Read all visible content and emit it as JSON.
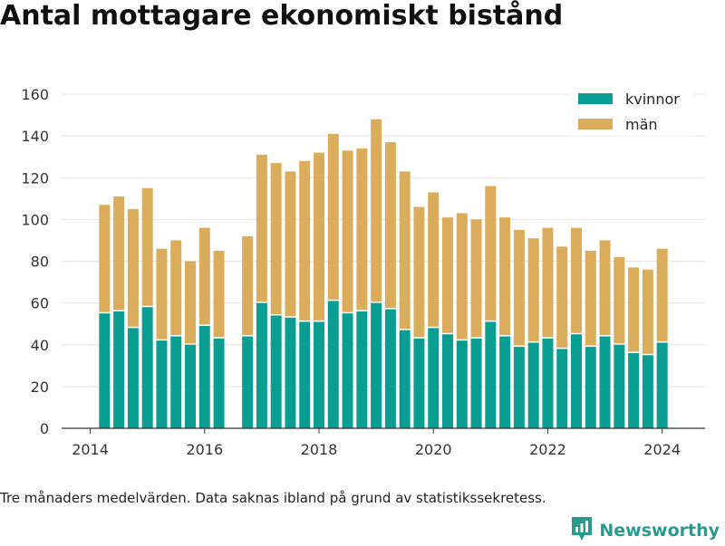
{
  "title": "Antal mottagare ekonomiskt bistånd",
  "footnote": "Tre månaders medelvärden. Data saknas ibland på grund av statistikssekretess.",
  "brand": "Newsworthy",
  "colors": {
    "kvinnor": "#0a9e92",
    "man": "#d9ad5c",
    "grid": "#e4e4e4",
    "axis": "#333333",
    "brand": "#2a9a8e"
  },
  "chart_data": {
    "type": "bar",
    "stacked": true,
    "title": "Antal mottagare ekonomiskt bistånd",
    "xlabel": "",
    "ylabel": "",
    "ylim": [
      0,
      160
    ],
    "xlim": [
      2013.5,
      2024.75
    ],
    "yticks": [
      0,
      20,
      40,
      60,
      80,
      100,
      120,
      140,
      160
    ],
    "xticks": [
      2014,
      2016,
      2018,
      2020,
      2022,
      2024
    ],
    "grid": true,
    "legend": "top-right",
    "x": [
      2014.25,
      2014.5,
      2014.75,
      2015.0,
      2015.25,
      2015.5,
      2015.75,
      2016.0,
      2016.25,
      2016.75,
      2017.0,
      2017.25,
      2017.5,
      2017.75,
      2018.0,
      2018.25,
      2018.5,
      2018.75,
      2019.0,
      2019.25,
      2019.5,
      2019.75,
      2020.0,
      2020.25,
      2020.5,
      2020.75,
      2021.0,
      2021.25,
      2021.5,
      2021.75,
      2022.0,
      2022.25,
      2022.5,
      2022.75,
      2023.0,
      2023.25,
      2023.5,
      2023.75,
      2024.0
    ],
    "series": [
      {
        "name": "kvinnor",
        "values": [
          55,
          56,
          48,
          58,
          42,
          44,
          40,
          49,
          43,
          44,
          60,
          54,
          53,
          51,
          51,
          61,
          55,
          56,
          60,
          57,
          47,
          43,
          48,
          45,
          42,
          43,
          51,
          44,
          39,
          41,
          43,
          38,
          45,
          39,
          44,
          40,
          36,
          35,
          41
        ]
      },
      {
        "name": "män",
        "values": [
          52,
          55,
          57,
          57,
          44,
          46,
          40,
          47,
          42,
          48,
          71,
          73,
          70,
          77,
          81,
          80,
          78,
          78,
          88,
          80,
          76,
          63,
          65,
          56,
          61,
          57,
          65,
          57,
          56,
          50,
          53,
          49,
          51,
          46,
          46,
          42,
          41,
          41,
          45
        ]
      }
    ]
  }
}
